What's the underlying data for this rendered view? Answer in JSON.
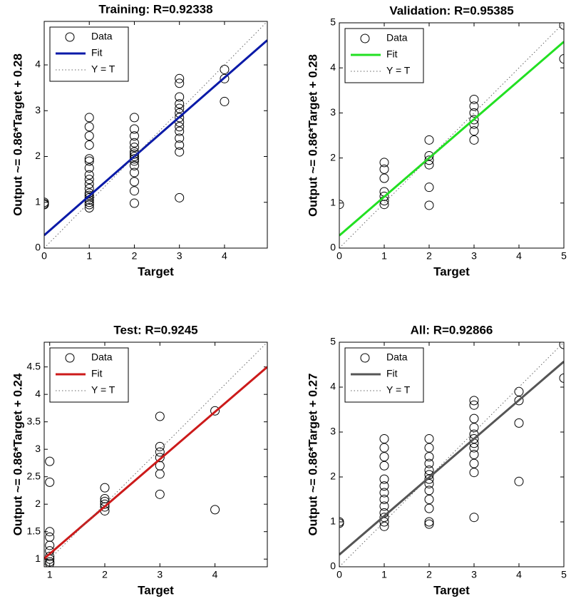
{
  "chart_data": [
    {
      "type": "scatter",
      "title": "Training: R=0.92338",
      "xlabel": "Target",
      "ylabel": "Output ~= 0.86*Target + 0.28",
      "xlim": [
        0,
        4.95
      ],
      "ylim": [
        0,
        4.95
      ],
      "xticks": [
        0,
        1,
        2,
        3,
        4
      ],
      "yticks": [
        0,
        1,
        2,
        3,
        4
      ],
      "legend": "upper left",
      "series": [
        {
          "name": "Data",
          "color": "#000000",
          "marker": "circle",
          "x": [
            0,
            0,
            0,
            1,
            1,
            1,
            1,
            1,
            1,
            1,
            1,
            1,
            1,
            1,
            1,
            1,
            1,
            1,
            1,
            1,
            1,
            2,
            2,
            2,
            2,
            2,
            2,
            2,
            2,
            2,
            2,
            2,
            2,
            2,
            2,
            2,
            3,
            3,
            3,
            3,
            3,
            3,
            3,
            3,
            3,
            3,
            3,
            3,
            3,
            3,
            4,
            4,
            4
          ],
          "values": [
            0.97,
            0.95,
            1.0,
            0.88,
            0.95,
            1.0,
            1.05,
            1.1,
            1.15,
            1.2,
            1.3,
            1.4,
            1.5,
            1.6,
            1.75,
            1.9,
            1.95,
            2.25,
            2.45,
            2.65,
            2.85,
            0.98,
            1.25,
            1.45,
            1.65,
            1.8,
            1.9,
            1.95,
            2.0,
            2.05,
            2.1,
            2.2,
            2.3,
            2.45,
            2.6,
            2.85,
            1.1,
            2.1,
            2.25,
            2.4,
            2.55,
            2.65,
            2.75,
            2.85,
            2.95,
            3.05,
            3.15,
            3.3,
            3.6,
            3.7,
            3.2,
            3.7,
            3.9
          ]
        },
        {
          "name": "Fit",
          "color": "#0a1aa8",
          "linestyle": "solid",
          "x": [
            0,
            4.95
          ],
          "values": [
            0.28,
            4.54
          ]
        },
        {
          "name": "Y = T",
          "color": "#666666",
          "linestyle": "dotted",
          "x": [
            0,
            4.95
          ],
          "values": [
            0,
            4.95
          ]
        }
      ]
    },
    {
      "type": "scatter",
      "title": "Validation: R=0.95385",
      "xlabel": "Target",
      "ylabel": "Output ~= 0.86*Target + 0.28",
      "xlim": [
        0,
        5
      ],
      "ylim": [
        0,
        5
      ],
      "xticks": [
        0,
        1,
        2,
        3,
        4,
        5
      ],
      "yticks": [
        0,
        1,
        2,
        3,
        4,
        5
      ],
      "legend": "upper left",
      "series": [
        {
          "name": "Data",
          "color": "#000000",
          "marker": "circle",
          "x": [
            0,
            1,
            1,
            1,
            1,
            1,
            1,
            1,
            2,
            2,
            2,
            2,
            2,
            2,
            3,
            3,
            3,
            3,
            3,
            3,
            3,
            5,
            5
          ],
          "values": [
            0.97,
            0.97,
            1.05,
            1.15,
            1.25,
            1.55,
            1.75,
            1.9,
            0.95,
            1.35,
            1.85,
            1.95,
            2.05,
            2.4,
            2.4,
            2.6,
            2.75,
            2.85,
            3.0,
            3.15,
            3.3,
            4.2,
            4.95
          ]
        },
        {
          "name": "Fit",
          "color": "#22e022",
          "linestyle": "solid",
          "x": [
            0,
            5
          ],
          "values": [
            0.28,
            4.58
          ]
        },
        {
          "name": "Y = T",
          "color": "#666666",
          "linestyle": "dotted",
          "x": [
            0,
            5
          ],
          "values": [
            0,
            5
          ]
        }
      ]
    },
    {
      "type": "scatter",
      "title": "Test: R=0.9245",
      "xlabel": "Target",
      "ylabel": "Output ~= 0.86*Target + 0.24",
      "xlim": [
        0.9,
        4.95
      ],
      "ylim": [
        0.86,
        4.95
      ],
      "xticks": [
        1,
        2,
        3,
        4
      ],
      "yticks": [
        1,
        1.5,
        2,
        2.5,
        3,
        3.5,
        4,
        4.5
      ],
      "legend": "upper left",
      "series": [
        {
          "name": "Data",
          "color": "#000000",
          "marker": "circle",
          "x": [
            1,
            1,
            1,
            1,
            1,
            1,
            1,
            1,
            1,
            1,
            2,
            2,
            2,
            2,
            2,
            2,
            3,
            3,
            3,
            3,
            3,
            3,
            3,
            4,
            4
          ],
          "values": [
            0.92,
            0.95,
            1.0,
            1.05,
            1.15,
            1.25,
            1.4,
            1.5,
            2.4,
            2.78,
            1.88,
            1.95,
            2.0,
            2.05,
            2.1,
            2.3,
            2.18,
            2.55,
            2.7,
            2.85,
            2.95,
            3.05,
            3.6,
            1.9,
            3.7
          ]
        },
        {
          "name": "Fit",
          "color": "#cc1a1a",
          "linestyle": "solid",
          "x": [
            0.9,
            4.95
          ],
          "values": [
            1.01,
            4.5
          ]
        },
        {
          "name": "Y = T",
          "color": "#666666",
          "linestyle": "dotted",
          "x": [
            0.9,
            4.95
          ],
          "values": [
            0.9,
            4.95
          ]
        }
      ]
    },
    {
      "type": "scatter",
      "title": "All: R=0.92866",
      "xlabel": "Target",
      "ylabel": "Output ~= 0.86*Target + 0.27",
      "xlim": [
        0,
        5
      ],
      "ylim": [
        0,
        5
      ],
      "xticks": [
        0,
        1,
        2,
        3,
        4,
        5
      ],
      "yticks": [
        0,
        1,
        2,
        3,
        4,
        5
      ],
      "legend": "upper left",
      "series": [
        {
          "name": "Data",
          "color": "#000000",
          "marker": "circle",
          "x": [
            0,
            0,
            1,
            1,
            1,
            1,
            1,
            1,
            1,
            1,
            1,
            1,
            1,
            1,
            1,
            2,
            2,
            2,
            2,
            2,
            2,
            2,
            2,
            2,
            2,
            2,
            2,
            2,
            3,
            3,
            3,
            3,
            3,
            3,
            3,
            3,
            3,
            3,
            3,
            3,
            4,
            4,
            4,
            4,
            5,
            5
          ],
          "values": [
            0.97,
            1.0,
            0.9,
            1.0,
            1.1,
            1.2,
            1.35,
            1.5,
            1.65,
            1.8,
            1.95,
            2.25,
            2.45,
            2.65,
            2.85,
            0.95,
            1.0,
            1.3,
            1.5,
            1.7,
            1.85,
            1.95,
            2.05,
            2.15,
            2.3,
            2.45,
            2.65,
            2.85,
            1.1,
            2.1,
            2.3,
            2.5,
            2.65,
            2.75,
            2.85,
            2.95,
            3.1,
            3.3,
            3.6,
            3.7,
            1.9,
            3.2,
            3.7,
            3.9,
            4.2,
            4.95
          ]
        },
        {
          "name": "Fit",
          "color": "#555555",
          "linestyle": "solid",
          "x": [
            0,
            5
          ],
          "values": [
            0.27,
            4.57
          ]
        },
        {
          "name": "Y = T",
          "color": "#666666",
          "linestyle": "dotted",
          "x": [
            0,
            5
          ],
          "values": [
            0,
            5
          ]
        }
      ]
    }
  ]
}
